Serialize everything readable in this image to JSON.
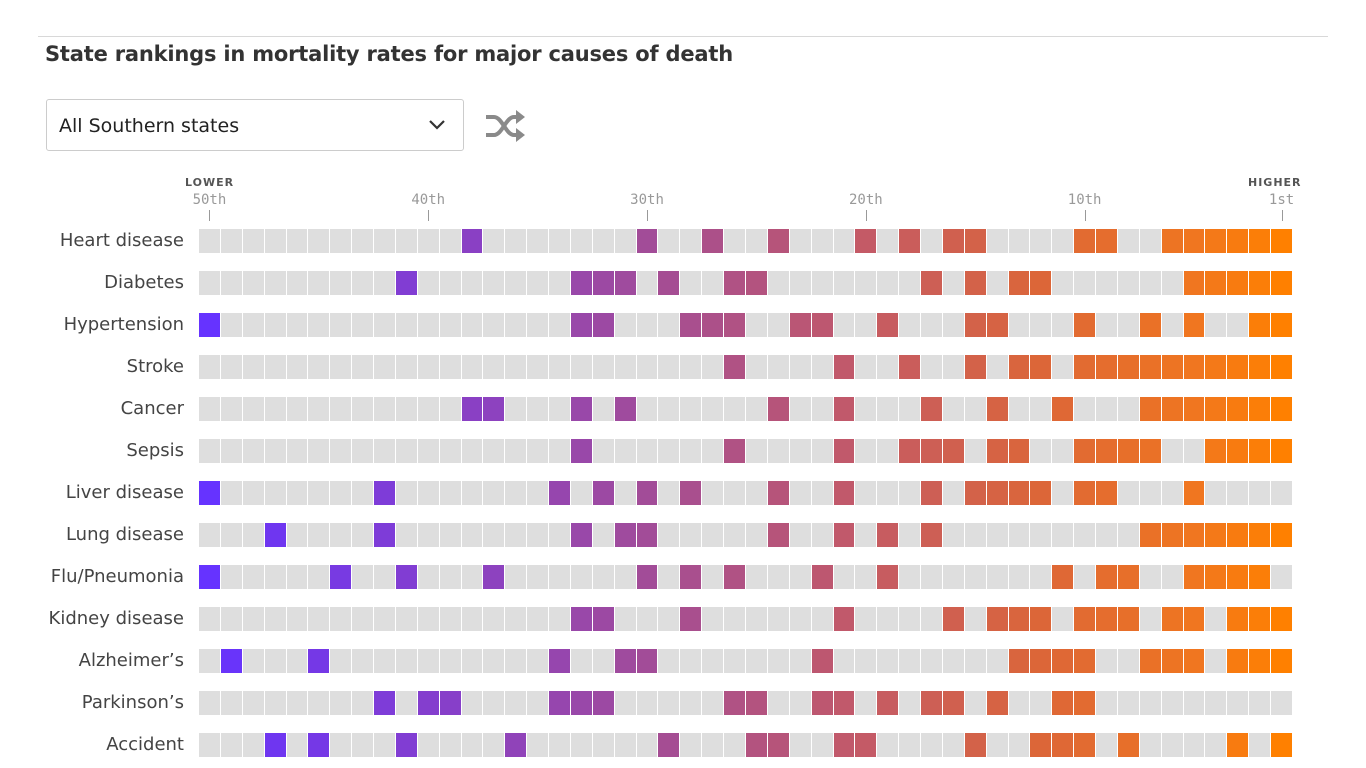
{
  "header": {
    "title": "State rankings in mortality rates for major causes of death"
  },
  "controls": {
    "region_select_value": "All Southern states",
    "shuffle_icon": "shuffle-icon",
    "dropdown_icon": "chevron-down-icon"
  },
  "chart_data": {
    "type": "heatmap",
    "title": "State rankings in mortality rates for major causes of death",
    "x_axis": {
      "lower_label": "LOWER",
      "higher_label": "HIGHER",
      "range": [
        50,
        1
      ],
      "ticks": [
        {
          "rank": 50,
          "label": "50th"
        },
        {
          "rank": 40,
          "label": "40th"
        },
        {
          "rank": 30,
          "label": "30th"
        },
        {
          "rank": 20,
          "label": "20th"
        },
        {
          "rank": 10,
          "label": "10th"
        },
        {
          "rank": 1,
          "label": "1st"
        }
      ]
    },
    "empty_color": "#dedede",
    "color_scale": [
      {
        "rank": 50,
        "color": "#6633ff"
      },
      {
        "rank": 38,
        "color": "#8a40c4"
      },
      {
        "rank": 30,
        "color": "#a24c98"
      },
      {
        "rank": 20,
        "color": "#c45a66"
      },
      {
        "rank": 12,
        "color": "#dc6638"
      },
      {
        "rank": 5,
        "color": "#f07620"
      },
      {
        "rank": 1,
        "color": "#ff8000"
      }
    ],
    "rows": [
      {
        "cause": "Heart disease",
        "highlighted_ranks": [
          38,
          30,
          27,
          24,
          20,
          18,
          16,
          15,
          10,
          9,
          6,
          5,
          4,
          3,
          2,
          1
        ]
      },
      {
        "cause": "Diabetes",
        "highlighted_ranks": [
          41,
          33,
          32,
          31,
          29,
          26,
          25,
          17,
          15,
          13,
          12,
          5,
          4,
          3,
          2,
          1
        ]
      },
      {
        "cause": "Hypertension",
        "highlighted_ranks": [
          50,
          33,
          32,
          28,
          27,
          26,
          23,
          22,
          19,
          15,
          14,
          10,
          7,
          5,
          2,
          1
        ]
      },
      {
        "cause": "Stroke",
        "highlighted_ranks": [
          26,
          21,
          18,
          15,
          13,
          12,
          10,
          9,
          8,
          7,
          6,
          5,
          4,
          3,
          2,
          1
        ]
      },
      {
        "cause": "Cancer",
        "highlighted_ranks": [
          38,
          37,
          33,
          31,
          24,
          21,
          17,
          14,
          11,
          7,
          6,
          5,
          4,
          3,
          2,
          1
        ]
      },
      {
        "cause": "Sepsis",
        "highlighted_ranks": [
          33,
          26,
          21,
          18,
          17,
          16,
          14,
          13,
          10,
          9,
          8,
          7,
          4,
          3,
          2,
          1
        ]
      },
      {
        "cause": "Liver disease",
        "highlighted_ranks": [
          50,
          42,
          34,
          32,
          30,
          28,
          24,
          21,
          17,
          15,
          14,
          13,
          12,
          10,
          9,
          5
        ]
      },
      {
        "cause": "Lung disease",
        "highlighted_ranks": [
          47,
          42,
          33,
          31,
          30,
          24,
          21,
          19,
          17,
          7,
          6,
          5,
          4,
          3,
          2,
          1
        ]
      },
      {
        "cause": "Flu/Pneumonia",
        "highlighted_ranks": [
          50,
          44,
          41,
          37,
          30,
          28,
          26,
          22,
          19,
          11,
          9,
          8,
          5,
          4,
          3,
          2
        ]
      },
      {
        "cause": "Kidney disease",
        "highlighted_ranks": [
          33,
          32,
          28,
          21,
          16,
          14,
          13,
          12,
          10,
          9,
          8,
          6,
          5,
          3,
          2,
          1
        ]
      },
      {
        "cause": "Alzheimer’s",
        "highlighted_ranks": [
          49,
          45,
          34,
          31,
          30,
          22,
          13,
          12,
          11,
          10,
          7,
          6,
          5,
          3,
          2,
          1
        ]
      },
      {
        "cause": "Parkinson’s",
        "highlighted_ranks": [
          42,
          40,
          39,
          34,
          33,
          32,
          26,
          25,
          22,
          21,
          19,
          17,
          16,
          14,
          11,
          10
        ]
      },
      {
        "cause": "Accident",
        "highlighted_ranks": [
          47,
          45,
          41,
          36,
          29,
          25,
          24,
          21,
          20,
          15,
          12,
          11,
          10,
          8,
          3,
          1
        ]
      }
    ]
  }
}
